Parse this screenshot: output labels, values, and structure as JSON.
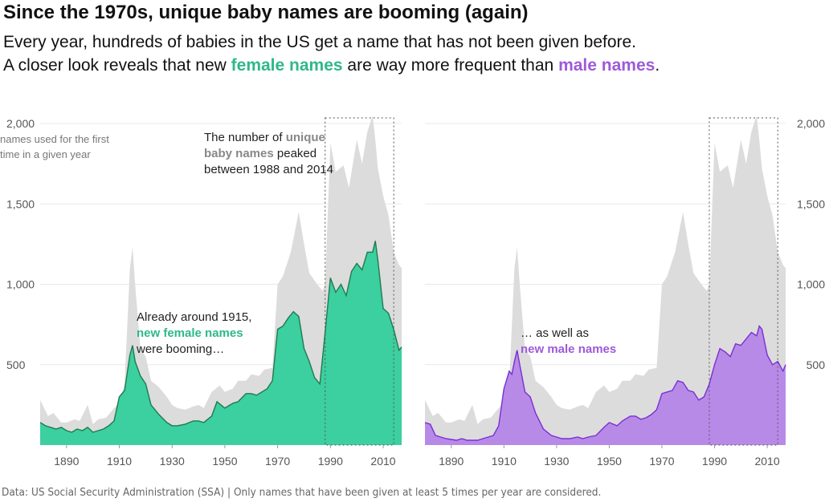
{
  "header": {
    "title": "Since the 1970s, unique baby names are booming (again)",
    "subtitle_line1": "Every year, hundreds of babies in the US get a name that has not been given before.",
    "subtitle_line2_a": "A closer look reveals that new ",
    "subtitle_line2_female": "female names",
    "subtitle_line2_b": " are way more frequent than ",
    "subtitle_line2_male": "male names",
    "subtitle_line2_c": "."
  },
  "caption": "Data: US Social Security Administration (SSA)  |  Only names that have been given at least 5 times per year are considered.",
  "colors": {
    "female": "#3ccf9f",
    "female_line": "#1f7a4f",
    "male": "#b88ae8",
    "male_line": "#7a2fd0",
    "total": "#dcdcdc",
    "grid": "#e8e8e8",
    "axis_text": "#555555"
  },
  "annotations": {
    "y_unit_line1": "names used for the first",
    "y_unit_line2": "time in a given year",
    "peak_line1_a": "The number of ",
    "peak_line1_b": "unique",
    "peak_line2_a": "baby names",
    "peak_line2_b": " peaked",
    "peak_line3": "between 1988 and 2014",
    "female_line1": "Already around 1915,",
    "female_line2": "new female names",
    "female_line3": "were booming…",
    "male_line1": "… as well as",
    "male_line2": "new male names"
  },
  "chart_data": [
    {
      "type": "area",
      "panel": "left",
      "xlim": [
        1880,
        2017
      ],
      "ylim": [
        0,
        2000
      ],
      "x_ticks": [
        "1890",
        "1910",
        "1930",
        "1950",
        "1970",
        "1990",
        "2010"
      ],
      "y_ticks": [
        "500",
        "1,000",
        "1,500",
        "2,000"
      ],
      "y_axis_side": "left",
      "highlight_years": [
        1988,
        2014
      ],
      "series": [
        {
          "name": "",
          "x": [
            1880,
            1883,
            1885,
            1888,
            1890,
            1893,
            1895,
            1898,
            1900,
            1902,
            1905,
            1908,
            1910,
            1912,
            1914,
            1915,
            1916,
            1918,
            1920,
            1922,
            1925,
            1928,
            1930,
            1932,
            1935,
            1938,
            1940,
            1942,
            1945,
            1948,
            1950,
            1953,
            1955,
            1958,
            1960,
            1963,
            1965,
            1968,
            1970,
            1972,
            1975,
            1978,
            1980,
            1982,
            1985,
            1987,
            1988,
            1990,
            1992,
            1995,
            1997,
            2000,
            2002,
            2004,
            2005,
            2006,
            2007,
            2008,
            2010,
            2012,
            2014,
            2016,
            2017
          ],
          "values": [
            280,
            180,
            200,
            140,
            140,
            160,
            150,
            250,
            130,
            160,
            170,
            230,
            260,
            380,
            1100,
            1230,
            1000,
            600,
            550,
            400,
            360,
            300,
            250,
            230,
            220,
            240,
            250,
            230,
            330,
            370,
            330,
            350,
            400,
            400,
            440,
            430,
            470,
            480,
            1000,
            1050,
            1200,
            1450,
            1250,
            1070,
            1000,
            960,
            1000,
            1880,
            1700,
            1740,
            1600,
            1900,
            1750,
            1950,
            2000,
            2050,
            1900,
            1720,
            1550,
            1430,
            1200,
            1120,
            1100
          ]
        },
        {
          "name": "",
          "x": [
            1880,
            1882,
            1884,
            1886,
            1888,
            1890,
            1892,
            1894,
            1896,
            1898,
            1900,
            1902,
            1904,
            1906,
            1908,
            1910,
            1912,
            1913,
            1914,
            1915,
            1916,
            1918,
            1920,
            1922,
            1925,
            1928,
            1930,
            1932,
            1935,
            1938,
            1940,
            1942,
            1945,
            1947,
            1950,
            1953,
            1955,
            1958,
            1960,
            1962,
            1964,
            1966,
            1968,
            1970,
            1972,
            1974,
            1976,
            1978,
            1980,
            1982,
            1984,
            1986,
            1988,
            1990,
            1992,
            1994,
            1996,
            1998,
            2000,
            2002,
            2004,
            2006,
            2007,
            2008,
            2010,
            2012,
            2014,
            2016,
            2017
          ],
          "values": [
            140,
            120,
            110,
            100,
            110,
            90,
            80,
            100,
            90,
            110,
            80,
            90,
            100,
            120,
            150,
            300,
            340,
            450,
            560,
            620,
            520,
            430,
            380,
            250,
            190,
            140,
            120,
            120,
            130,
            150,
            150,
            140,
            180,
            270,
            230,
            260,
            270,
            320,
            320,
            310,
            330,
            350,
            400,
            720,
            740,
            790,
            830,
            800,
            600,
            520,
            420,
            380,
            700,
            1040,
            950,
            1000,
            930,
            1080,
            1130,
            1090,
            1200,
            1200,
            1270,
            1150,
            850,
            820,
            720,
            590,
            610
          ]
        }
      ]
    },
    {
      "type": "area",
      "panel": "right",
      "xlim": [
        1880,
        2017
      ],
      "ylim": [
        0,
        2000
      ],
      "x_ticks": [
        "1890",
        "1910",
        "1930",
        "1950",
        "1970",
        "1990",
        "2010"
      ],
      "y_ticks": [
        "500",
        "1,000",
        "1,500",
        "2,000"
      ],
      "y_axis_side": "right",
      "highlight_years": [
        1988,
        2014
      ],
      "series": [
        {
          "name": "",
          "x": [
            1880,
            1883,
            1885,
            1888,
            1890,
            1893,
            1895,
            1898,
            1900,
            1902,
            1905,
            1908,
            1910,
            1912,
            1914,
            1915,
            1916,
            1918,
            1920,
            1922,
            1925,
            1928,
            1930,
            1932,
            1935,
            1938,
            1940,
            1942,
            1945,
            1948,
            1950,
            1953,
            1955,
            1958,
            1960,
            1963,
            1965,
            1968,
            1970,
            1972,
            1975,
            1978,
            1980,
            1982,
            1985,
            1987,
            1988,
            1990,
            1992,
            1995,
            1997,
            2000,
            2002,
            2004,
            2005,
            2006,
            2007,
            2008,
            2010,
            2012,
            2014,
            2016,
            2017
          ],
          "values": [
            280,
            180,
            200,
            140,
            140,
            160,
            150,
            250,
            130,
            160,
            170,
            230,
            260,
            380,
            1100,
            1230,
            1000,
            600,
            550,
            400,
            360,
            300,
            250,
            230,
            220,
            240,
            250,
            230,
            330,
            370,
            330,
            350,
            400,
            400,
            440,
            430,
            470,
            480,
            1000,
            1050,
            1200,
            1450,
            1250,
            1070,
            1000,
            960,
            1000,
            1880,
            1700,
            1740,
            1600,
            1900,
            1750,
            1950,
            2000,
            2050,
            1900,
            1720,
            1550,
            1430,
            1200,
            1120,
            1100
          ]
        },
        {
          "name": "",
          "x": [
            1880,
            1882,
            1884,
            1886,
            1888,
            1890,
            1892,
            1894,
            1896,
            1898,
            1900,
            1902,
            1904,
            1906,
            1908,
            1910,
            1912,
            1913,
            1914,
            1915,
            1916,
            1918,
            1920,
            1922,
            1925,
            1928,
            1930,
            1932,
            1935,
            1938,
            1940,
            1942,
            1945,
            1948,
            1950,
            1953,
            1955,
            1958,
            1960,
            1962,
            1964,
            1966,
            1968,
            1970,
            1972,
            1974,
            1976,
            1978,
            1980,
            1982,
            1984,
            1986,
            1988,
            1990,
            1992,
            1994,
            1996,
            1998,
            2000,
            2002,
            2004,
            2006,
            2007,
            2008,
            2010,
            2012,
            2014,
            2016,
            2017
          ],
          "values": [
            140,
            130,
            60,
            50,
            40,
            35,
            30,
            40,
            30,
            30,
            30,
            40,
            50,
            60,
            120,
            350,
            460,
            440,
            520,
            590,
            500,
            330,
            300,
            200,
            100,
            60,
            50,
            40,
            40,
            50,
            40,
            50,
            60,
            110,
            140,
            120,
            150,
            180,
            180,
            160,
            170,
            190,
            220,
            320,
            330,
            340,
            400,
            390,
            340,
            330,
            280,
            300,
            380,
            500,
            600,
            580,
            550,
            630,
            620,
            660,
            700,
            680,
            740,
            720,
            560,
            500,
            520,
            460,
            500
          ]
        }
      ]
    }
  ]
}
